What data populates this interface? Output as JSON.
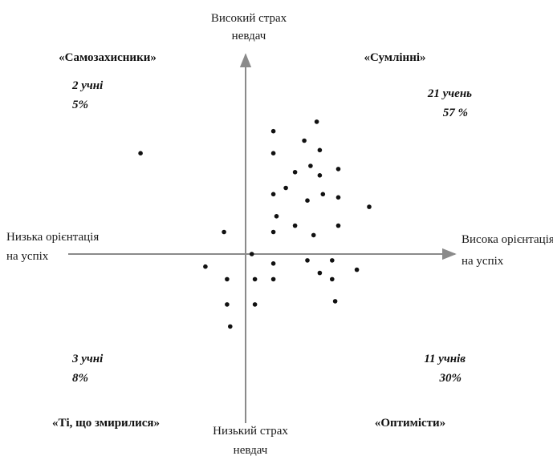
{
  "chart_data": {
    "type": "scatter",
    "title": "",
    "axes": {
      "y_top": [
        "Високий страх",
        "невдач"
      ],
      "y_bottom": [
        "Низький страх",
        "невдач"
      ],
      "x_left": [
        "Низька орієнтація",
        "на успіх"
      ],
      "x_right": [
        "Висока орієнтація",
        "на успіх"
      ]
    },
    "xlim": [
      -4,
      7
    ],
    "ylim": [
      -5,
      5.7
    ],
    "grid": false,
    "legend": "none",
    "quadrants": {
      "top_left": {
        "name": "«Самозахисники»",
        "count": "2 учні",
        "percent": "5%"
      },
      "top_right": {
        "name": "«Сумлінні»",
        "count": "21 учень",
        "percent": "57 %"
      },
      "bottom_left": {
        "name": "«Ті, що змирилися»",
        "count": "3 учні",
        "percent": "8%"
      },
      "bottom_right": {
        "name": "«Оптимісти»",
        "count": "11 учнів",
        "percent": "30%"
      }
    },
    "points": [
      [
        -3.4,
        3.2
      ],
      [
        -0.7,
        0.7
      ],
      [
        0.9,
        3.9
      ],
      [
        0.9,
        3.2
      ],
      [
        1.9,
        3.6
      ],
      [
        2.3,
        4.2
      ],
      [
        2.4,
        3.3
      ],
      [
        1.6,
        2.6
      ],
      [
        2.1,
        2.8
      ],
      [
        2.4,
        2.5
      ],
      [
        3.0,
        2.7
      ],
      [
        0.9,
        1.9
      ],
      [
        1.3,
        2.1
      ],
      [
        2.0,
        1.7
      ],
      [
        2.5,
        1.9
      ],
      [
        3.0,
        1.8
      ],
      [
        1.0,
        1.2
      ],
      [
        1.6,
        0.9
      ],
      [
        4.0,
        1.5
      ],
      [
        2.2,
        0.6
      ],
      [
        0.9,
        0.7
      ],
      [
        3.0,
        0.9
      ],
      [
        -1.3,
        -0.4
      ],
      [
        -0.6,
        -0.8
      ],
      [
        0.3,
        -0.8
      ],
      [
        0.9,
        -0.3
      ],
      [
        0.9,
        -0.8
      ],
      [
        -0.6,
        -1.6
      ],
      [
        -0.5,
        -2.3
      ],
      [
        0.3,
        -1.6
      ],
      [
        0.2,
        0.0
      ],
      [
        2.0,
        -0.2
      ],
      [
        2.4,
        -0.6
      ],
      [
        2.8,
        -0.2
      ],
      [
        2.8,
        -0.8
      ],
      [
        3.6,
        -0.5
      ],
      [
        2.9,
        -1.5
      ]
    ]
  }
}
